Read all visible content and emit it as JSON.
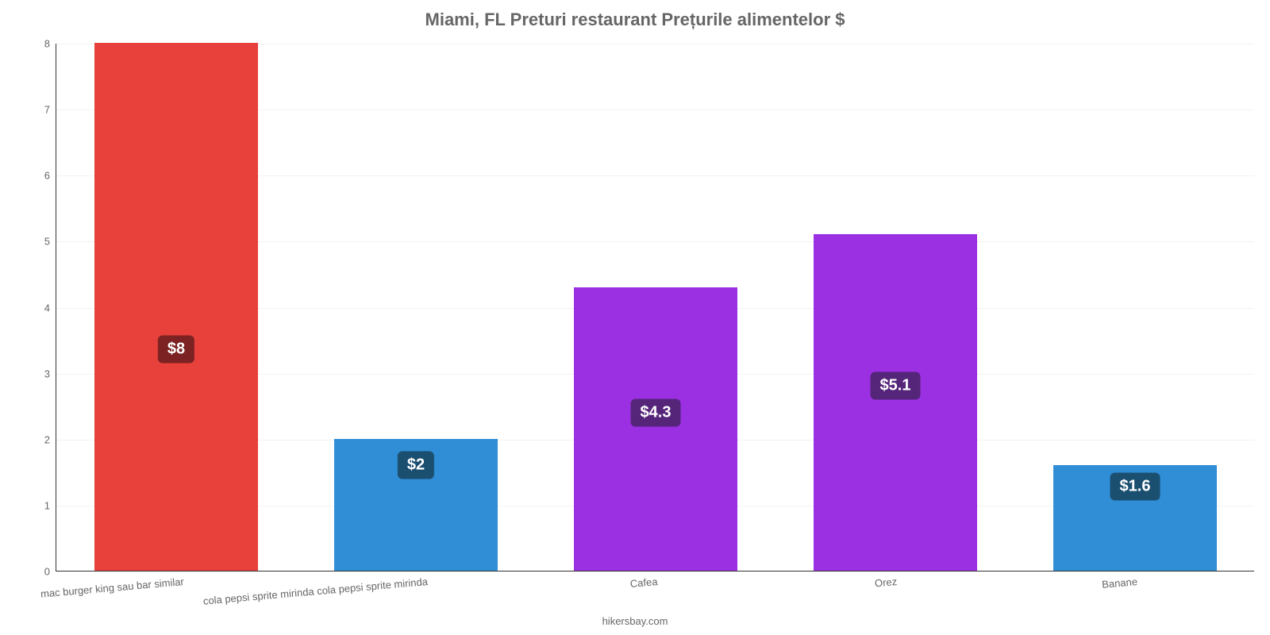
{
  "title": "Miami, FL Preturi restaurant Prețurile alimentelor $",
  "title_fontsize": 22,
  "title_color": "#666666",
  "source": "hikersbay.com",
  "background_color": "#ffffff",
  "gridline_color": "#f2f2f2",
  "axis_color": "#333333",
  "tick_font_color": "#666666",
  "tick_fontsize": 13,
  "bar_value_fontsize": 20,
  "bar_value_text_color": "#ffffff",
  "chart": {
    "type": "bar",
    "ymin": 0,
    "ymax": 8,
    "ytick_step": 1,
    "bar_width_ratio": 0.68,
    "categories": [
      "mac burger king sau bar similar",
      "cola pepsi sprite mirinda cola pepsi sprite mirinda",
      "Cafea",
      "Orez",
      "Banane"
    ],
    "values": [
      8,
      2,
      4.3,
      5.1,
      1.6
    ],
    "value_labels": [
      "$8",
      "$2",
      "$4.3",
      "$5.1",
      "$1.6"
    ],
    "bar_colors": [
      "#e8403a",
      "#2f8ed6",
      "#9b30e3",
      "#9b30e3",
      "#2f8ed6"
    ],
    "label_box_colors": [
      "#7c2222",
      "#1b4f70",
      "#55257a",
      "#55257a",
      "#1b4f70"
    ],
    "label_box_y_ratio": [
      0.42,
      0.2,
      0.3,
      0.35,
      0.16
    ]
  }
}
